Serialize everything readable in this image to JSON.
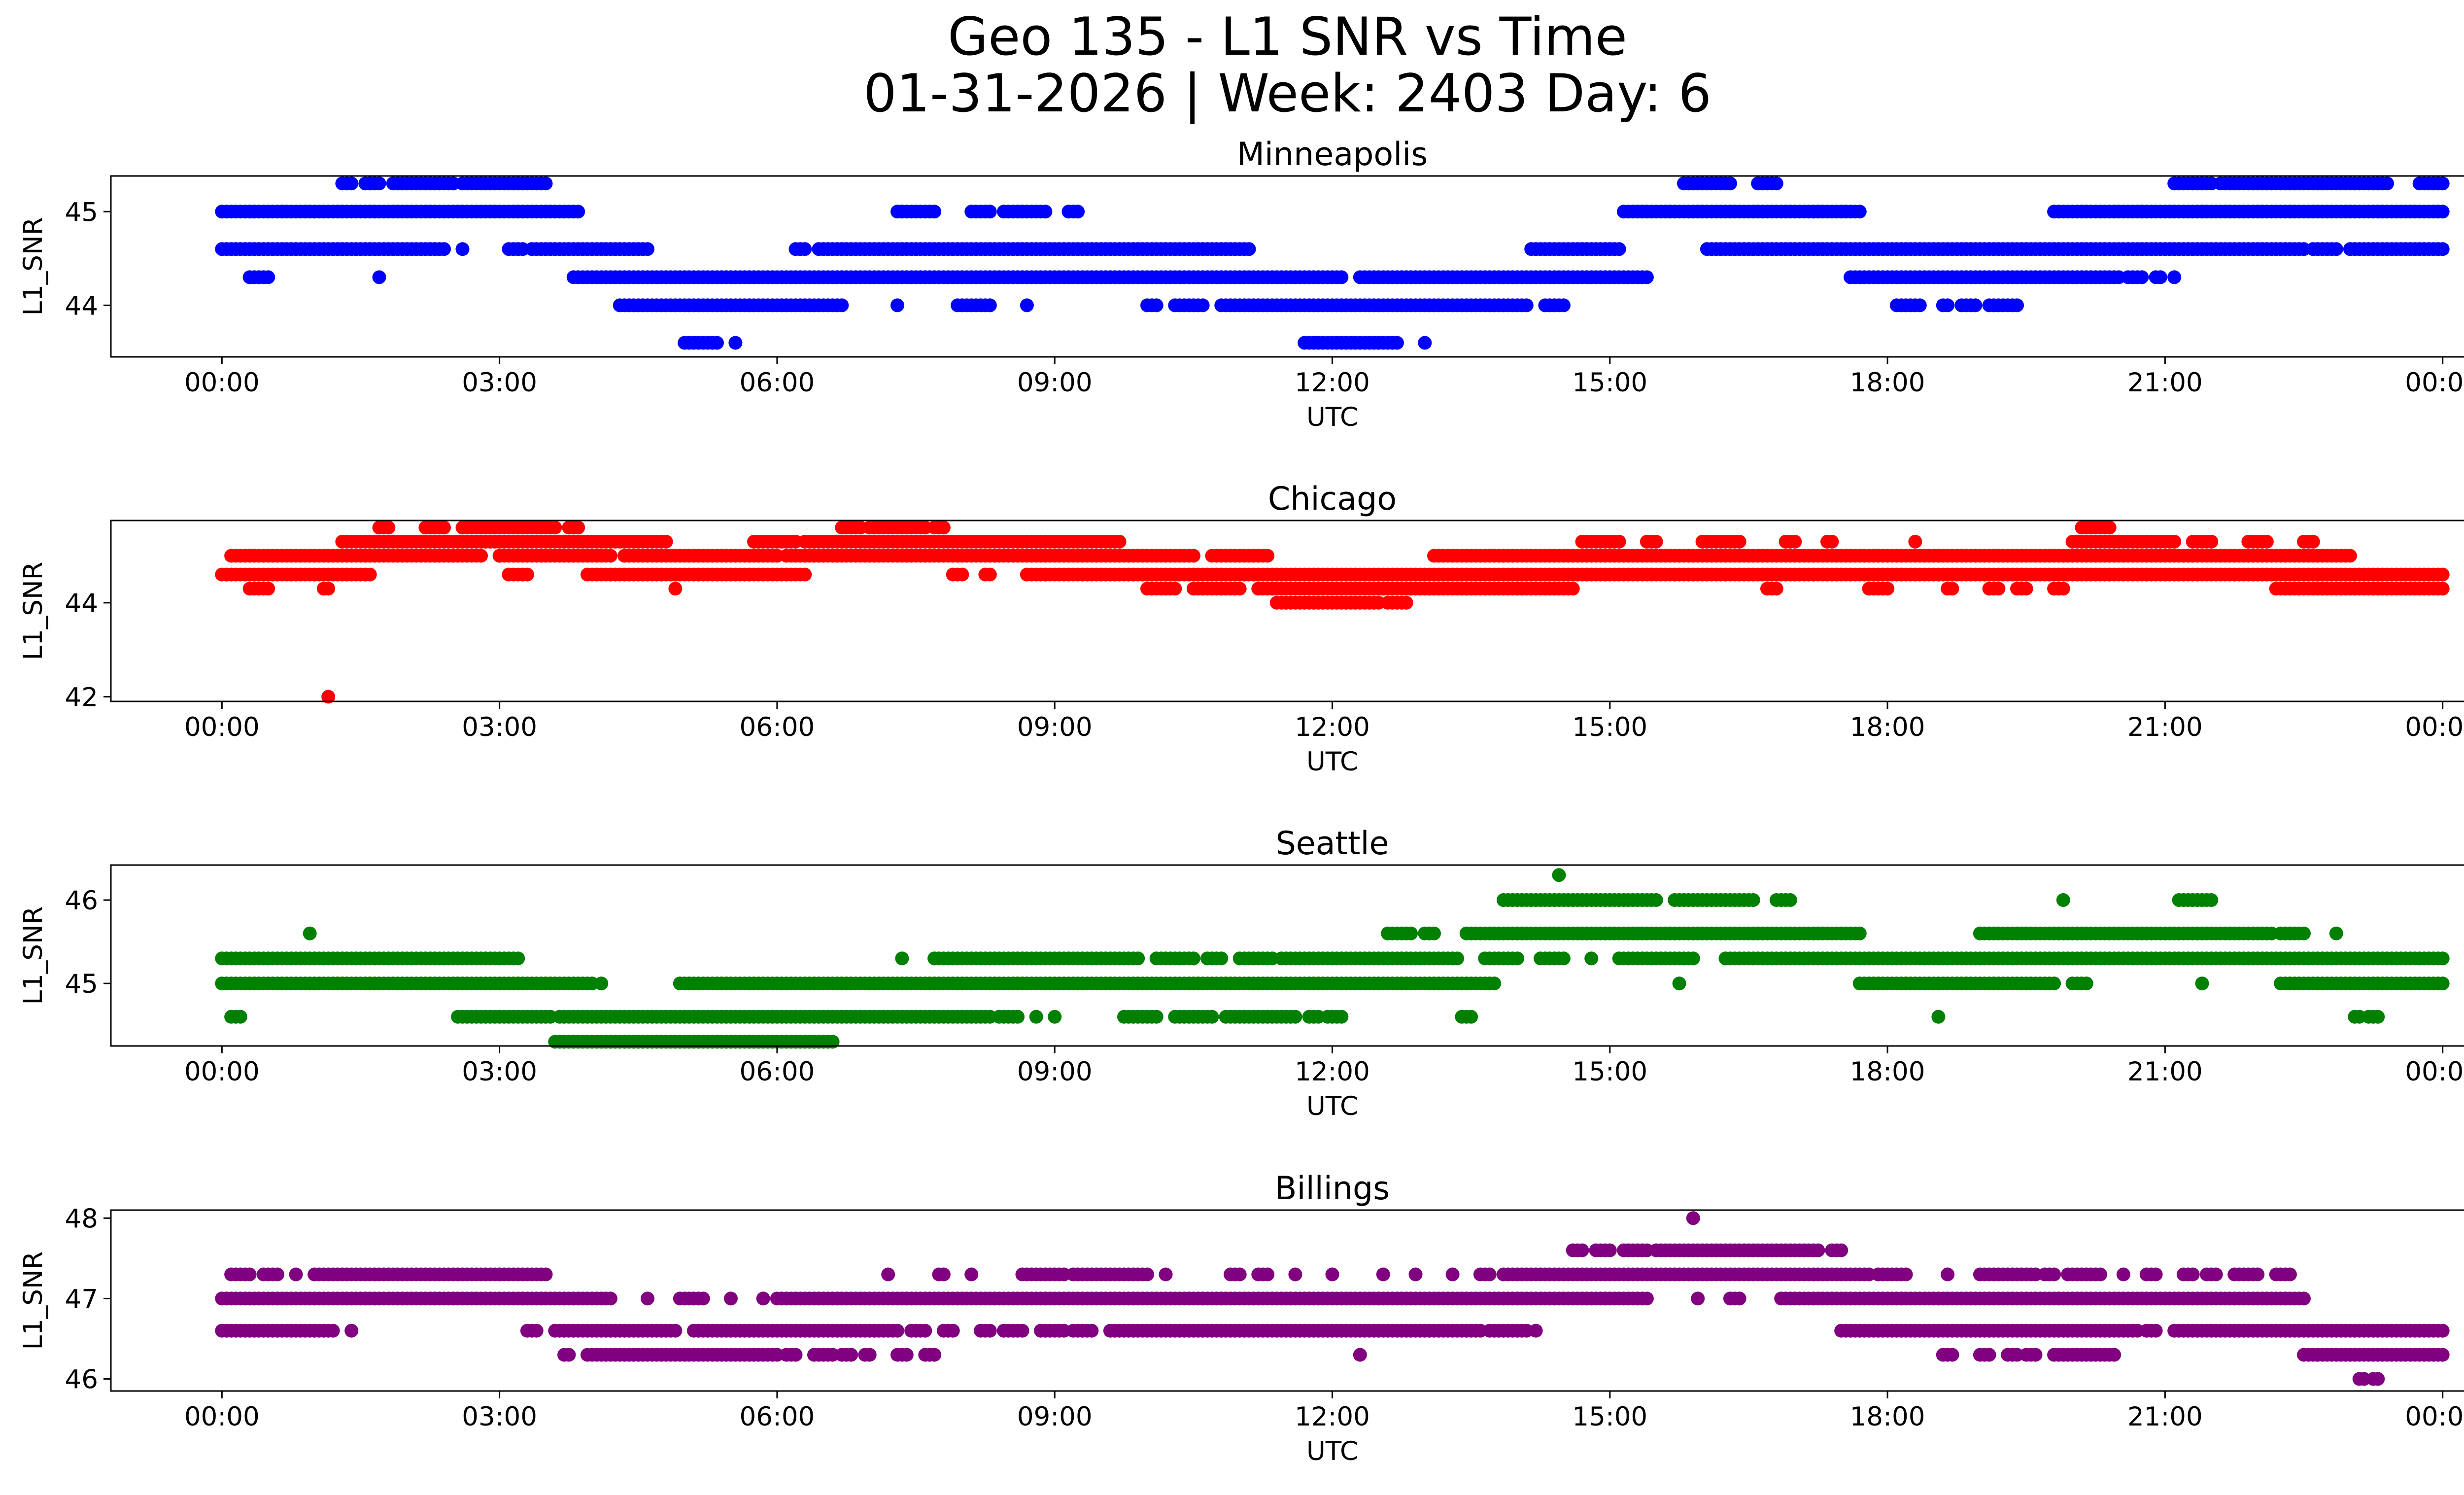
{
  "figure": {
    "title_line1": "Geo 135 - L1 SNR vs Time",
    "title_line2": "01-31-2026 | Week: 2403 Day: 6"
  },
  "chart_data": [
    {
      "type": "scatter",
      "title": "Minneapolis",
      "xlabel": "UTC",
      "ylabel": "L1_SNR",
      "x_ticks": [
        "00:00",
        "03:00",
        "06:00",
        "09:00",
        "12:00",
        "15:00",
        "18:00",
        "21:00",
        "00:00"
      ],
      "xlim_hours": [
        -1.2,
        25.2
      ],
      "y_ticks": [
        44,
        45
      ],
      "ylim": [
        43.45,
        45.38
      ],
      "grid": false,
      "color": "#0000ff",
      "levels": [
        {
          "y": 45.3,
          "segs": [
            [
              1.3,
              1.4
            ],
            [
              1.55,
              1.7
            ],
            [
              1.85,
              2.5
            ],
            [
              2.6,
              3.5
            ],
            [
              15.8,
              16.3
            ],
            [
              16.6,
              16.8
            ],
            [
              21.1,
              21.5
            ],
            [
              21.6,
              23.4
            ],
            [
              23.75,
              24.0
            ]
          ]
        },
        {
          "y": 45.0,
          "segs": [
            [
              0.0,
              3.85
            ],
            [
              7.3,
              7.7
            ],
            [
              8.1,
              8.3
            ],
            [
              8.45,
              8.9
            ],
            [
              9.15,
              9.25
            ],
            [
              15.15,
              17.7
            ],
            [
              19.8,
              24.0
            ]
          ]
        },
        {
          "y": 44.6,
          "segs": [
            [
              0.0,
              2.4
            ],
            [
              2.6,
              2.6
            ],
            [
              3.1,
              3.25
            ],
            [
              3.35,
              4.6
            ],
            [
              6.2,
              6.3
            ],
            [
              6.45,
              11.1
            ],
            [
              14.15,
              15.1
            ],
            [
              16.05,
              22.5
            ],
            [
              22.6,
              22.85
            ],
            [
              23.0,
              24.0
            ]
          ]
        },
        {
          "y": 44.3,
          "segs": [
            [
              0.3,
              0.5
            ],
            [
              1.7,
              1.7
            ],
            [
              3.8,
              12.1
            ],
            [
              12.3,
              15.4
            ],
            [
              17.6,
              20.5
            ],
            [
              20.6,
              20.75
            ],
            [
              20.9,
              20.95
            ],
            [
              21.1,
              21.1
            ]
          ]
        },
        {
          "y": 44.0,
          "segs": [
            [
              4.3,
              6.7
            ],
            [
              7.3,
              7.3
            ],
            [
              7.95,
              8.3
            ],
            [
              8.7,
              8.7
            ],
            [
              10.0,
              10.1
            ],
            [
              10.3,
              10.6
            ],
            [
              10.8,
              14.1
            ],
            [
              14.3,
              14.5
            ],
            [
              18.1,
              18.35
            ],
            [
              18.6,
              18.65
            ],
            [
              18.8,
              18.95
            ],
            [
              19.1,
              19.4
            ]
          ]
        },
        {
          "y": 43.6,
          "segs": [
            [
              5.0,
              5.35
            ],
            [
              5.55,
              5.55
            ],
            [
              11.7,
              12.7
            ],
            [
              13.0,
              13.0
            ]
          ]
        }
      ]
    },
    {
      "type": "scatter",
      "title": "Chicago",
      "xlabel": "UTC",
      "ylabel": "L1_SNR",
      "x_ticks": [
        "00:00",
        "03:00",
        "06:00",
        "09:00",
        "12:00",
        "15:00",
        "18:00",
        "21:00",
        "00:00"
      ],
      "xlim_hours": [
        -1.2,
        25.2
      ],
      "y_ticks": [
        42,
        44
      ],
      "ylim": [
        41.9,
        45.75
      ],
      "grid": false,
      "color": "#ff0000",
      "levels": [
        {
          "y": 45.6,
          "segs": [
            [
              1.7,
              1.8
            ],
            [
              2.2,
              2.4
            ],
            [
              2.6,
              3.6
            ],
            [
              3.75,
              3.85
            ],
            [
              6.7,
              6.9
            ],
            [
              7.0,
              7.6
            ],
            [
              7.7,
              7.8
            ],
            [
              20.1,
              20.4
            ]
          ]
        },
        {
          "y": 45.3,
          "segs": [
            [
              1.3,
              4.8
            ],
            [
              5.75,
              6.2
            ],
            [
              6.3,
              9.7
            ],
            [
              14.7,
              15.1
            ],
            [
              15.4,
              15.5
            ],
            [
              16.0,
              16.4
            ],
            [
              16.9,
              17.0
            ],
            [
              17.35,
              17.4
            ],
            [
              18.3,
              18.3
            ],
            [
              20.0,
              21.1
            ],
            [
              21.3,
              21.5
            ],
            [
              21.9,
              22.1
            ],
            [
              22.5,
              22.6
            ]
          ]
        },
        {
          "y": 45.0,
          "segs": [
            [
              0.1,
              2.8
            ],
            [
              3.0,
              4.2
            ],
            [
              4.35,
              6.0
            ],
            [
              6.1,
              10.5
            ],
            [
              10.7,
              11.3
            ],
            [
              13.1,
              23.0
            ]
          ]
        },
        {
          "y": 44.6,
          "segs": [
            [
              0.0,
              1.6
            ],
            [
              3.1,
              3.3
            ],
            [
              3.95,
              6.3
            ],
            [
              7.9,
              8.0
            ],
            [
              8.25,
              8.3
            ],
            [
              8.7,
              24.0
            ]
          ]
        },
        {
          "y": 44.3,
          "segs": [
            [
              0.3,
              0.5
            ],
            [
              1.1,
              1.15
            ],
            [
              4.9,
              4.9
            ],
            [
              10.0,
              10.3
            ],
            [
              10.5,
              11.0
            ],
            [
              11.2,
              14.6
            ],
            [
              16.7,
              16.8
            ],
            [
              17.8,
              18.0
            ],
            [
              18.65,
              18.7
            ],
            [
              19.1,
              19.2
            ],
            [
              19.4,
              19.5
            ],
            [
              19.8,
              19.9
            ],
            [
              22.2,
              24.0
            ]
          ]
        },
        {
          "y": 44.0,
          "segs": [
            [
              11.4,
              12.5
            ],
            [
              12.6,
              12.8
            ]
          ]
        },
        {
          "y": 42.0,
          "segs": [
            [
              1.15,
              1.15
            ]
          ]
        }
      ]
    },
    {
      "type": "scatter",
      "title": "Seattle",
      "xlabel": "UTC",
      "ylabel": "L1_SNR",
      "x_ticks": [
        "00:00",
        "03:00",
        "06:00",
        "09:00",
        "12:00",
        "15:00",
        "18:00",
        "21:00",
        "00:00"
      ],
      "xlim_hours": [
        -1.2,
        25.2
      ],
      "y_ticks": [
        45,
        46
      ],
      "ylim": [
        44.25,
        46.42
      ],
      "grid": false,
      "color": "#008000",
      "levels": [
        {
          "y": 46.3,
          "segs": [
            [
              14.45,
              14.45
            ]
          ]
        },
        {
          "y": 46.0,
          "segs": [
            [
              13.85,
              15.5
            ],
            [
              15.7,
              16.55
            ],
            [
              16.8,
              16.95
            ],
            [
              19.9,
              19.9
            ],
            [
              21.15,
              21.5
            ]
          ]
        },
        {
          "y": 45.6,
          "segs": [
            [
              0.95,
              0.95
            ],
            [
              12.6,
              12.85
            ],
            [
              13.0,
              13.1
            ],
            [
              13.45,
              17.7
            ],
            [
              19.0,
              22.15
            ],
            [
              22.25,
              22.5
            ],
            [
              22.85,
              22.85
            ]
          ]
        },
        {
          "y": 45.3,
          "segs": [
            [
              0.0,
              2.85
            ],
            [
              2.9,
              3.2
            ],
            [
              7.35,
              7.35
            ],
            [
              7.7,
              9.9
            ],
            [
              10.1,
              10.5
            ],
            [
              10.65,
              10.8
            ],
            [
              11.0,
              11.35
            ],
            [
              11.45,
              13.35
            ],
            [
              13.65,
              14.0
            ],
            [
              14.25,
              14.5
            ],
            [
              14.8,
              14.8
            ],
            [
              15.1,
              15.9
            ],
            [
              16.25,
              24.0
            ]
          ]
        },
        {
          "y": 45.0,
          "segs": [
            [
              0.0,
              4.0
            ],
            [
              4.1,
              4.1
            ],
            [
              4.95,
              13.75
            ],
            [
              15.75,
              15.75
            ],
            [
              17.7,
              19.8
            ],
            [
              20.0,
              20.15
            ],
            [
              21.4,
              21.4
            ],
            [
              22.25,
              24.0
            ]
          ]
        },
        {
          "y": 44.6,
          "segs": [
            [
              0.1,
              0.2
            ],
            [
              2.55,
              3.55
            ],
            [
              3.65,
              8.3
            ],
            [
              8.4,
              8.6
            ],
            [
              8.8,
              8.8
            ],
            [
              9.0,
              9.0
            ],
            [
              9.75,
              10.1
            ],
            [
              10.3,
              10.7
            ],
            [
              10.85,
              11.6
            ],
            [
              11.75,
              11.85
            ],
            [
              11.95,
              12.1
            ],
            [
              13.4,
              13.5
            ],
            [
              18.55,
              18.55
            ],
            [
              23.05,
              23.1
            ],
            [
              23.2,
              23.3
            ]
          ]
        },
        {
          "y": 44.3,
          "segs": [
            [
              3.6,
              6.6
            ]
          ]
        }
      ]
    },
    {
      "type": "scatter",
      "title": "Billings",
      "xlabel": "UTC",
      "ylabel": "L1_SNR",
      "x_ticks": [
        "00:00",
        "03:00",
        "06:00",
        "09:00",
        "12:00",
        "15:00",
        "18:00",
        "21:00",
        "00:00"
      ],
      "xlim_hours": [
        -1.2,
        25.2
      ],
      "y_ticks": [
        46,
        47,
        48
      ],
      "ylim": [
        45.85,
        48.1
      ],
      "grid": false,
      "color": "#800080",
      "levels": [
        {
          "y": 48.0,
          "segs": [
            [
              15.9,
              15.9
            ]
          ]
        },
        {
          "y": 47.6,
          "segs": [
            [
              14.6,
              14.7
            ],
            [
              14.85,
              15.0
            ],
            [
              15.15,
              15.4
            ],
            [
              15.5,
              17.25
            ],
            [
              17.4,
              17.5
            ]
          ]
        },
        {
          "y": 47.3,
          "segs": [
            [
              0.1,
              0.3
            ],
            [
              0.45,
              0.6
            ],
            [
              0.8,
              0.8
            ],
            [
              1.0,
              3.5
            ],
            [
              7.2,
              7.2
            ],
            [
              7.75,
              7.8
            ],
            [
              8.1,
              8.1
            ],
            [
              8.65,
              9.1
            ],
            [
              9.2,
              10.0
            ],
            [
              10.2,
              10.2
            ],
            [
              10.9,
              11.0
            ],
            [
              11.2,
              11.3
            ],
            [
              11.6,
              11.6
            ],
            [
              12.0,
              12.0
            ],
            [
              12.55,
              12.55
            ],
            [
              12.9,
              12.9
            ],
            [
              13.3,
              13.3
            ],
            [
              13.6,
              13.7
            ],
            [
              13.85,
              17.8
            ],
            [
              17.9,
              18.2
            ],
            [
              18.65,
              18.65
            ],
            [
              19.0,
              19.6
            ],
            [
              19.7,
              19.8
            ],
            [
              19.95,
              20.3
            ],
            [
              20.55,
              20.55
            ],
            [
              20.8,
              20.9
            ],
            [
              21.2,
              21.3
            ],
            [
              21.45,
              21.55
            ],
            [
              21.75,
              22.0
            ],
            [
              22.2,
              22.35
            ]
          ]
        },
        {
          "y": 47.0,
          "segs": [
            [
              0.0,
              4.2
            ],
            [
              4.6,
              4.6
            ],
            [
              4.95,
              5.2
            ],
            [
              5.5,
              5.5
            ],
            [
              5.85,
              5.85
            ],
            [
              6.0,
              15.4
            ],
            [
              15.95,
              15.95
            ],
            [
              16.3,
              16.4
            ],
            [
              16.85,
              22.5
            ]
          ]
        },
        {
          "y": 46.6,
          "segs": [
            [
              0.0,
              1.2
            ],
            [
              1.4,
              1.4
            ],
            [
              3.3,
              3.4
            ],
            [
              3.6,
              4.9
            ],
            [
              5.1,
              7.3
            ],
            [
              7.45,
              7.6
            ],
            [
              7.8,
              7.9
            ],
            [
              8.2,
              8.3
            ],
            [
              8.45,
              8.65
            ],
            [
              8.85,
              9.1
            ],
            [
              9.2,
              9.4
            ],
            [
              9.6,
              13.6
            ],
            [
              13.7,
              14.1
            ],
            [
              14.2,
              14.2
            ],
            [
              17.5,
              20.7
            ],
            [
              20.8,
              20.9
            ],
            [
              21.1,
              24.0
            ]
          ]
        },
        {
          "y": 46.3,
          "segs": [
            [
              3.7,
              3.75
            ],
            [
              3.95,
              6.0
            ],
            [
              6.1,
              6.2
            ],
            [
              6.4,
              6.6
            ],
            [
              6.7,
              6.8
            ],
            [
              6.95,
              7.0
            ],
            [
              7.3,
              7.4
            ],
            [
              7.6,
              7.7
            ],
            [
              12.3,
              12.3
            ],
            [
              18.6,
              18.7
            ],
            [
              19.0,
              19.1
            ],
            [
              19.3,
              19.4
            ],
            [
              19.5,
              19.6
            ],
            [
              19.8,
              20.45
            ],
            [
              22.5,
              24.0
            ]
          ]
        },
        {
          "y": 46.0,
          "segs": [
            [
              23.1,
              23.15
            ],
            [
              23.25,
              23.3
            ]
          ]
        }
      ]
    }
  ]
}
